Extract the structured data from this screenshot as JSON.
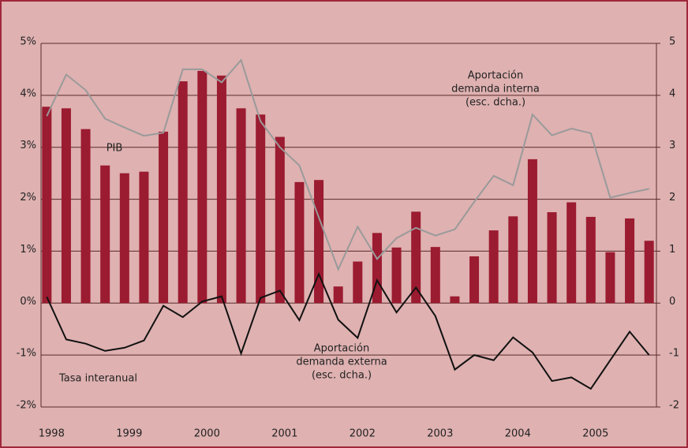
{
  "chart_data": {
    "type": "bar",
    "categories": [
      "1998",
      null,
      null,
      null,
      "1999",
      null,
      null,
      null,
      "2000",
      null,
      null,
      null,
      "2001",
      null,
      null,
      null,
      "2002",
      null,
      null,
      null,
      "2003",
      null,
      null,
      null,
      "2004",
      null,
      null,
      null,
      "2005",
      null,
      null,
      null
    ],
    "series": [
      {
        "name": "PIB",
        "type": "bar",
        "color": "#9b1b30",
        "values": [
          3.78,
          3.75,
          3.35,
          2.65,
          2.5,
          2.53,
          3.3,
          4.27,
          4.47,
          4.38,
          3.75,
          3.63,
          3.2,
          2.33,
          2.37,
          0.32,
          0.8,
          1.35,
          1.07,
          1.76,
          1.08,
          0.13,
          0.9,
          1.4,
          1.67,
          2.77,
          1.75,
          1.94,
          1.66,
          0.98,
          1.63,
          1.2
        ]
      },
      {
        "name": [
          "Aportación",
          "demanda interna",
          "(esc. dcha.)"
        ],
        "type": "line",
        "axis": "y2",
        "color": "#9a9a9a",
        "values": [
          3.6,
          4.4,
          4.1,
          3.55,
          3.38,
          3.22,
          3.28,
          4.5,
          4.5,
          4.25,
          4.68,
          3.5,
          3.0,
          2.65,
          1.65,
          0.65,
          1.47,
          0.85,
          1.25,
          1.45,
          1.3,
          1.42,
          1.95,
          2.45,
          2.27,
          3.63,
          3.23,
          3.36,
          3.27,
          2.03,
          2.12,
          2.2
        ]
      },
      {
        "name": [
          "Aportación",
          "demanda externa",
          "(esc. dcha.)"
        ],
        "type": "line",
        "axis": "y2",
        "color": "#111111",
        "values": [
          0.12,
          -0.7,
          -0.78,
          -0.92,
          -0.86,
          -0.72,
          -0.05,
          -0.27,
          0.03,
          0.13,
          -0.97,
          0.1,
          0.24,
          -0.33,
          0.56,
          -0.32,
          -0.67,
          0.44,
          -0.18,
          0.3,
          -0.25,
          -1.28,
          -1.0,
          -1.1,
          -0.66,
          -0.95,
          -1.5,
          -1.43,
          -1.65,
          -1.1,
          -0.55,
          -1.0
        ]
      }
    ],
    "annotations": [
      "Tasa interanual"
    ],
    "ylim": [
      -2,
      5
    ],
    "yticks": [
      {
        "value": -2,
        "label": "-2%"
      },
      {
        "value": -1,
        "label": "-1%"
      },
      {
        "value": 0,
        "label": "0%"
      },
      {
        "value": 1,
        "label": "1%"
      },
      {
        "value": 2,
        "label": "2%"
      },
      {
        "value": 3,
        "label": "3%"
      },
      {
        "value": 4,
        "label": "4%"
      },
      {
        "value": 5,
        "label": "5%"
      }
    ],
    "y2lim": [
      -2,
      5
    ],
    "y2ticks": [
      -2,
      -1,
      0,
      1,
      2,
      3,
      4,
      5
    ],
    "grid": true
  }
}
